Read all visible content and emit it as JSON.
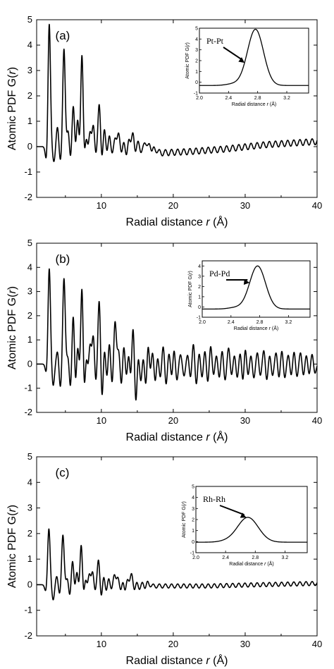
{
  "chart_data": [
    {
      "type": "line",
      "panel_label": "(a)",
      "xlabel": "Radial distance r (Å)",
      "ylabel": "Atomic PDF G(r)",
      "xlim": [
        1,
        40
      ],
      "ylim": [
        -2,
        5
      ],
      "xticks": [
        10,
        20,
        30,
        40
      ],
      "yticks": [
        -2,
        -1,
        0,
        1,
        2,
        3,
        4,
        5
      ],
      "series": [
        {
          "peaks": [
            [
              2.75,
              4.9
            ],
            [
              3.9,
              0.8
            ],
            [
              4.8,
              3.85
            ],
            [
              5.4,
              0.7
            ],
            [
              6.1,
              1.7
            ],
            [
              6.7,
              1.2
            ],
            [
              7.3,
              3.8
            ],
            [
              7.9,
              0.45
            ],
            [
              8.4,
              0.7
            ],
            [
              8.9,
              0.9
            ],
            [
              9.7,
              1.7
            ],
            [
              10.4,
              0.8
            ],
            [
              11.1,
              0.5
            ],
            [
              11.9,
              0.35
            ],
            [
              12.4,
              0.55
            ],
            [
              13.1,
              0.25
            ],
            [
              13.8,
              0.35
            ],
            [
              14.4,
              0.6
            ],
            [
              15.1,
              0.25
            ],
            [
              16.0,
              0.15
            ],
            [
              16.7,
              0.2
            ],
            [
              17.3,
              0.1
            ]
          ],
          "troughs": [
            [
              2.4,
              -0.7
            ],
            [
              3.4,
              -0.6
            ],
            [
              4.3,
              -0.6
            ],
            [
              5.7,
              -0.6
            ],
            [
              6.4,
              -0.4
            ],
            [
              7.0,
              -0.4
            ],
            [
              7.6,
              -0.6
            ],
            [
              8.2,
              -0.3
            ],
            [
              9.2,
              -0.4
            ],
            [
              10.1,
              -0.6
            ],
            [
              10.8,
              -0.3
            ],
            [
              11.5,
              -0.3
            ],
            [
              12.8,
              -0.3
            ],
            [
              13.5,
              -0.4
            ],
            [
              14.7,
              -0.3
            ],
            [
              15.5,
              -0.25
            ],
            [
              17.0,
              -0.15
            ]
          ],
          "tail_amp": 0.12,
          "tail_baseline": [
            [
              18,
              -0.25
            ],
            [
              22,
              -0.2
            ],
            [
              27,
              -0.1
            ],
            [
              33,
              0.08
            ],
            [
              40,
              0.2
            ]
          ]
        }
      ],
      "inset": {
        "annotation": "Pt-Pt",
        "xlabel": "Radial distance r (Å)",
        "ylabel": "Atomic PDF G(r)",
        "xlim": [
          2.0,
          3.5
        ],
        "ylim": [
          -1,
          5
        ],
        "xticks": [
          "2.0",
          "2.4",
          "2.8",
          "3.2"
        ],
        "yticks": [
          "-1",
          "0",
          "1",
          "2",
          "3",
          "4",
          "5"
        ],
        "peak_x": 2.77,
        "peak_y": 4.9,
        "peak_width": 0.11,
        "baseline": -0.3,
        "arrow_at_x": 2.62
      }
    },
    {
      "type": "line",
      "panel_label": "(b)",
      "xlabel": "Radial distance r (Å)",
      "ylabel": "Atomic PDF G(r)",
      "xlim": [
        1,
        40
      ],
      "ylim": [
        -2,
        5
      ],
      "xticks": [
        10,
        20,
        30,
        40
      ],
      "yticks": [
        -2,
        -1,
        0,
        1,
        2,
        3,
        4,
        5
      ],
      "series": [
        {
          "peaks": [
            [
              2.75,
              4.0
            ],
            [
              3.9,
              0.55
            ],
            [
              4.8,
              3.55
            ],
            [
              5.4,
              0.4
            ],
            [
              6.1,
              2.25
            ],
            [
              6.7,
              1.0
            ],
            [
              7.3,
              3.5
            ],
            [
              7.9,
              0.5
            ],
            [
              8.4,
              1.0
            ],
            [
              8.9,
              1.3
            ],
            [
              9.7,
              2.7
            ],
            [
              10.4,
              0.8
            ],
            [
              11.1,
              1.0
            ],
            [
              11.9,
              1.8
            ],
            [
              12.4,
              0.6
            ],
            [
              13.1,
              0.9
            ],
            [
              13.8,
              0.6
            ],
            [
              14.4,
              1.7
            ],
            [
              15.1,
              0.5
            ],
            [
              15.8,
              0.4
            ],
            [
              16.5,
              1.0
            ],
            [
              17.1,
              0.6
            ],
            [
              17.8,
              0.4
            ],
            [
              18.6,
              0.8
            ],
            [
              19.4,
              0.5
            ],
            [
              20.1,
              0.7
            ],
            [
              21.0,
              0.4
            ],
            [
              22.0,
              0.4
            ],
            [
              22.8,
              0.9
            ],
            [
              23.6,
              0.5
            ],
            [
              24.4,
              0.6
            ],
            [
              25.2,
              0.8
            ],
            [
              26.0,
              0.4
            ],
            [
              26.8,
              0.6
            ],
            [
              27.7,
              0.7
            ],
            [
              28.5,
              0.4
            ],
            [
              29.3,
              0.5
            ],
            [
              30.0,
              0.75
            ],
            [
              30.8,
              0.4
            ],
            [
              31.7,
              0.5
            ],
            [
              32.6,
              0.6
            ],
            [
              33.4,
              0.4
            ],
            [
              34.3,
              0.5
            ],
            [
              35.1,
              0.6
            ],
            [
              36.0,
              0.4
            ],
            [
              36.8,
              0.55
            ],
            [
              37.7,
              0.5
            ],
            [
              38.5,
              0.4
            ],
            [
              39.3,
              0.45
            ]
          ],
          "troughs": [
            [
              2.4,
              -0.5
            ],
            [
              3.3,
              -0.9
            ],
            [
              4.3,
              -1.0
            ],
            [
              5.7,
              -1.1
            ],
            [
              6.4,
              -1.2
            ],
            [
              7.0,
              -0.6
            ],
            [
              7.6,
              -1.4
            ],
            [
              8.2,
              -0.5
            ],
            [
              9.2,
              -0.9
            ],
            [
              10.1,
              -1.6
            ],
            [
              10.8,
              -0.7
            ],
            [
              11.5,
              -0.9
            ],
            [
              12.8,
              -1.0
            ],
            [
              13.5,
              -0.6
            ],
            [
              14.1,
              -0.8
            ],
            [
              14.8,
              -1.7
            ],
            [
              15.5,
              -0.8
            ],
            [
              16.2,
              -1.0
            ],
            [
              16.8,
              -0.5
            ],
            [
              17.5,
              -0.8
            ],
            [
              18.2,
              -0.6
            ],
            [
              19.0,
              -0.9
            ],
            [
              19.8,
              -0.6
            ],
            [
              20.5,
              -0.7
            ],
            [
              21.5,
              -0.5
            ],
            [
              22.4,
              -0.6
            ],
            [
              23.2,
              -0.9
            ],
            [
              24.0,
              -0.6
            ],
            [
              24.8,
              -0.8
            ],
            [
              25.6,
              -0.5
            ],
            [
              26.4,
              -0.6
            ],
            [
              27.2,
              -0.7
            ],
            [
              28.1,
              -0.5
            ],
            [
              28.9,
              -0.6
            ],
            [
              29.7,
              -0.8
            ],
            [
              30.4,
              -0.5
            ],
            [
              31.2,
              -0.6
            ],
            [
              32.1,
              -0.5
            ],
            [
              33.0,
              -0.7
            ],
            [
              33.8,
              -0.5
            ],
            [
              34.7,
              -0.6
            ],
            [
              35.5,
              -0.6
            ],
            [
              36.4,
              -0.5
            ],
            [
              37.2,
              -0.55
            ],
            [
              38.1,
              -0.5
            ],
            [
              38.9,
              -0.45
            ],
            [
              39.7,
              -0.4
            ]
          ],
          "tail_amp": 0.0,
          "tail_baseline": [
            [
              40,
              0.0
            ]
          ]
        }
      ],
      "inset": {
        "annotation": "Pd-Pd",
        "xlabel": "Radial distance r (Å)",
        "ylabel": "Atomic PDF G(r)",
        "xlim": [
          2.0,
          3.5
        ],
        "ylim": [
          -1,
          4.5
        ],
        "xticks": [
          "2.0",
          "2.4",
          "2.8",
          "3.2"
        ],
        "yticks": [
          "-1",
          "0",
          "1",
          "2",
          "3",
          "4"
        ],
        "peak_x": 2.77,
        "peak_y": 4.0,
        "peak_width": 0.11,
        "baseline": -0.2,
        "arrow_at_x": 2.66
      }
    },
    {
      "type": "line",
      "panel_label": "(c)",
      "xlabel": "Radial distance r (Å)",
      "ylabel": "Atomic PDF G(r)",
      "xlim": [
        1,
        40
      ],
      "ylim": [
        -2,
        5
      ],
      "xticks": [
        10,
        20,
        30,
        40
      ],
      "yticks": [
        -2,
        -1,
        0,
        1,
        2,
        3,
        4,
        5
      ],
      "series": [
        {
          "peaks": [
            [
              2.7,
              2.2
            ],
            [
              3.8,
              0.35
            ],
            [
              4.65,
              1.95
            ],
            [
              5.3,
              0.3
            ],
            [
              6.0,
              1.0
            ],
            [
              6.6,
              0.6
            ],
            [
              7.2,
              1.7
            ],
            [
              7.8,
              0.3
            ],
            [
              8.3,
              0.5
            ],
            [
              8.8,
              0.55
            ],
            [
              9.6,
              1.0
            ],
            [
              10.3,
              0.4
            ],
            [
              11.0,
              0.3
            ],
            [
              11.8,
              0.4
            ],
            [
              12.3,
              0.3
            ],
            [
              13.0,
              0.2
            ],
            [
              13.6,
              0.25
            ],
            [
              14.2,
              0.45
            ],
            [
              14.9,
              0.15
            ],
            [
              15.7,
              0.12
            ],
            [
              16.4,
              0.15
            ]
          ],
          "troughs": [
            [
              2.3,
              -0.3
            ],
            [
              3.3,
              -0.6
            ],
            [
              4.2,
              -0.4
            ],
            [
              5.6,
              -0.5
            ],
            [
              6.3,
              -0.3
            ],
            [
              6.9,
              -0.3
            ],
            [
              7.5,
              -0.5
            ],
            [
              8.1,
              -0.2
            ],
            [
              9.1,
              -0.3
            ],
            [
              10.0,
              -0.55
            ],
            [
              10.7,
              -0.3
            ],
            [
              11.4,
              -0.2
            ],
            [
              12.7,
              -0.25
            ],
            [
              13.3,
              -0.3
            ],
            [
              14.6,
              -0.25
            ],
            [
              15.3,
              -0.2
            ],
            [
              16.1,
              -0.15
            ]
          ],
          "tail_amp": 0.08,
          "tail_baseline": [
            [
              17,
              -0.05
            ],
            [
              25,
              -0.05
            ],
            [
              32,
              0.0
            ],
            [
              40,
              0.05
            ]
          ]
        }
      ],
      "inset": {
        "annotation": "Rh-Rh",
        "xlabel": "Radial distance r (Å)",
        "ylabel": "Atomic PDF G(r)",
        "xlim": [
          2.0,
          3.5
        ],
        "ylim": [
          -1,
          5
        ],
        "xticks": [
          "2.0",
          "2.4",
          "2.8",
          "3.2"
        ],
        "yticks": [
          "-1",
          "0",
          "1",
          "2",
          "3",
          "4",
          "5"
        ],
        "peak_x": 2.7,
        "peak_y": 2.2,
        "peak_width": 0.14,
        "baseline": -0.05,
        "arrow_at_x": 2.68
      }
    }
  ]
}
